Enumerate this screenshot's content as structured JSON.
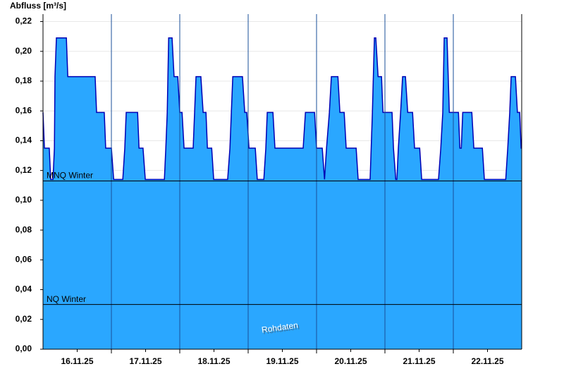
{
  "chart_data": {
    "type": "area",
    "y_label": "Abfluss [m³/s]",
    "watermark": "Rohdaten",
    "xlim": [
      0,
      168
    ],
    "ylim": [
      0,
      0.225
    ],
    "xticks": [
      {
        "value": 12,
        "label": "16.11.25"
      },
      {
        "value": 36,
        "label": "17.11.25"
      },
      {
        "value": 60,
        "label": "18.11.25"
      },
      {
        "value": 84,
        "label": "19.11.25"
      },
      {
        "value": 108,
        "label": "20.11.25"
      },
      {
        "value": 132,
        "label": "21.11.25"
      },
      {
        "value": 156,
        "label": "22.11.25"
      }
    ],
    "xminorticks": [
      24,
      48,
      72,
      96,
      120,
      144
    ],
    "yticks": [
      {
        "value": 0,
        "label": "0,00"
      },
      {
        "value": 0.02,
        "label": "0,02"
      },
      {
        "value": 0.04,
        "label": "0,04"
      },
      {
        "value": 0.06,
        "label": "0,06"
      },
      {
        "value": 0.08,
        "label": "0,08"
      },
      {
        "value": 0.1,
        "label": "0,10"
      },
      {
        "value": 0.12,
        "label": "0,12"
      },
      {
        "value": 0.14,
        "label": "0,14"
      },
      {
        "value": 0.16,
        "label": "0,16"
      },
      {
        "value": 0.18,
        "label": "0,18"
      },
      {
        "value": 0.2,
        "label": "0,20"
      },
      {
        "value": 0.22,
        "label": "0,22"
      }
    ],
    "grid": true,
    "color": "#2aa7ff",
    "line_color": "#0000b4",
    "reference_lines": [
      {
        "label": "MNQ Winter",
        "value": 0.113
      },
      {
        "label": "NQ Winter",
        "value": 0.03
      }
    ],
    "x": [
      0,
      0.5,
      2.2,
      2.7,
      3.5,
      4.0,
      4.2,
      4.7,
      8.2,
      8.7,
      18.3,
      18.8,
      21.5,
      22.0,
      24.0,
      24.8,
      28.0,
      28.7,
      29.2,
      33.2,
      33.7,
      35.1,
      35.9,
      42.6,
      43.1,
      43.6,
      44.1,
      45.3,
      46.0,
      47.3,
      48.0,
      48.8,
      49.5,
      52.7,
      53.2,
      53.7,
      55.4,
      56.2,
      57.2,
      57.7,
      59.2,
      59.9,
      64.8,
      65.6,
      66.1,
      66.6,
      70.0,
      70.8,
      71.5,
      72.3,
      74.5,
      75.2,
      77.5,
      78.2,
      78.7,
      80.7,
      81.4,
      91.3,
      92.1,
      95.3,
      96.0,
      98.0,
      98.8,
      99.5,
      100.5,
      101.2,
      103.5,
      104.2,
      105.7,
      106.4,
      109.9,
      110.6,
      114.8,
      115.6,
      116.3,
      116.8,
      117.6,
      118.8,
      119.3,
      122.5,
      123.0,
      123.8,
      124.2,
      124.7,
      125.5,
      126.2,
      127.2,
      128.0,
      129.7,
      130.4,
      132.2,
      132.9,
      138.8,
      139.6,
      140.3,
      140.8,
      141.8,
      142.6,
      145.8,
      146.3,
      146.8,
      147.3,
      150.5,
      151.2,
      154.2,
      154.9,
      162.4,
      163.1,
      163.8,
      164.3,
      165.8,
      166.5,
      167.3,
      167.8,
      168
    ],
    "values": [
      0.159,
      0.135,
      0.135,
      0.114,
      0.114,
      0.135,
      0.183,
      0.209,
      0.209,
      0.183,
      0.183,
      0.159,
      0.159,
      0.135,
      0.135,
      0.114,
      0.114,
      0.135,
      0.159,
      0.159,
      0.135,
      0.135,
      0.114,
      0.114,
      0.135,
      0.159,
      0.209,
      0.209,
      0.183,
      0.183,
      0.159,
      0.159,
      0.135,
      0.135,
      0.159,
      0.183,
      0.183,
      0.159,
      0.159,
      0.135,
      0.135,
      0.114,
      0.114,
      0.135,
      0.159,
      0.183,
      0.183,
      0.159,
      0.159,
      0.135,
      0.135,
      0.114,
      0.114,
      0.135,
      0.159,
      0.159,
      0.135,
      0.135,
      0.159,
      0.159,
      0.135,
      0.135,
      0.114,
      0.135,
      0.159,
      0.183,
      0.183,
      0.159,
      0.159,
      0.135,
      0.135,
      0.114,
      0.114,
      0.159,
      0.209,
      0.209,
      0.183,
      0.183,
      0.159,
      0.159,
      0.135,
      0.114,
      0.114,
      0.135,
      0.159,
      0.183,
      0.183,
      0.159,
      0.159,
      0.135,
      0.135,
      0.114,
      0.114,
      0.135,
      0.159,
      0.209,
      0.209,
      0.159,
      0.159,
      0.135,
      0.135,
      0.159,
      0.159,
      0.135,
      0.135,
      0.114,
      0.114,
      0.135,
      0.159,
      0.183,
      0.183,
      0.159,
      0.159,
      0.135,
      0.135
    ]
  }
}
